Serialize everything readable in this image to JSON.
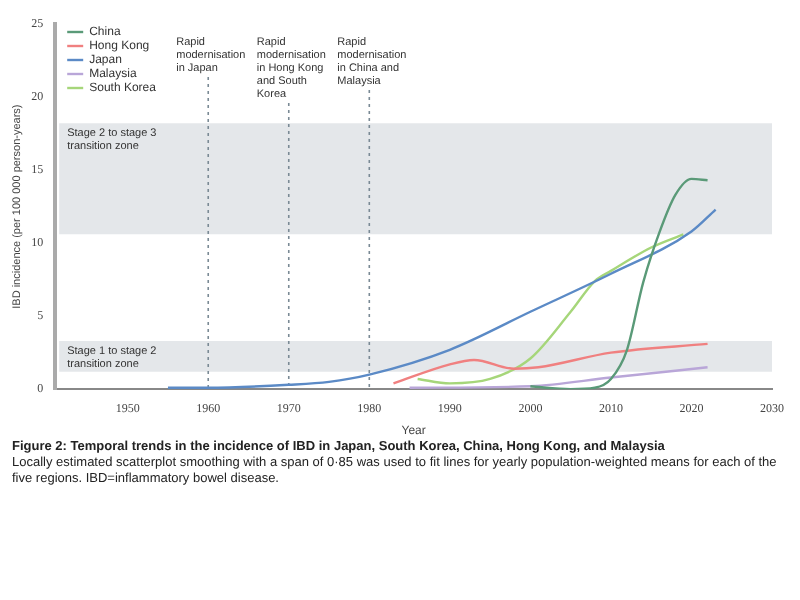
{
  "chart_data": {
    "type": "line",
    "title": "Figure 2: Temporal trends in the incidence of IBD in Japan, South Korea, China, Hong Kong, and Malaysia",
    "xlabel": "Year",
    "ylabel": "IBD incidence (per 100 000 person-years)",
    "annotations": [
      "Locally estimated scatterplot smoothing with a span of 0·85 was used to fit lines for yearly population-weighted means for each of the five regions. IBD=inflammatory bowel disease."
    ],
    "series": [
      {
        "name": "China",
        "color": "#5a9a78",
        "x": [
          2000,
          2005,
          2008,
          2010,
          2012,
          2014,
          2016,
          2018,
          2020,
          2022
        ],
        "values": [
          0.2,
          0.0,
          0.1,
          0.7,
          2.7,
          7.3,
          10.7,
          13.3,
          14.4,
          14.3
        ]
      },
      {
        "name": "Hong Kong",
        "color": "#f08080",
        "x": [
          1983,
          1990,
          1993,
          1998,
          2001,
          2010,
          2022
        ],
        "values": [
          0.4,
          1.7,
          2.0,
          1.4,
          1.5,
          2.5,
          3.1
        ]
      },
      {
        "name": "Japan",
        "color": "#5b8ac6",
        "x": [
          1955,
          1960,
          1970,
          1975,
          1980,
          1990,
          2000,
          2010,
          2020,
          2023
        ],
        "values": [
          0.1,
          0.1,
          0.3,
          0.5,
          1.0,
          2.7,
          5.3,
          7.9,
          10.8,
          12.3
        ]
      },
      {
        "name": "Malaysia",
        "color": "#b9a6d8",
        "x": [
          1985,
          2000,
          2010,
          2022
        ],
        "values": [
          0.1,
          0.2,
          0.8,
          1.5
        ]
      },
      {
        "name": "South Korea",
        "color": "#a6d67a",
        "x": [
          1986,
          1990,
          1995,
          2000,
          2005,
          2008,
          2010,
          2015,
          2019
        ],
        "values": [
          0.7,
          0.4,
          0.7,
          2.1,
          5.3,
          7.4,
          8.1,
          9.7,
          10.6
        ]
      }
    ],
    "xlim": [
      1941,
      2030
    ],
    "xticks": [
      1950,
      1960,
      1970,
      1980,
      1990,
      2000,
      2010,
      2020,
      2030
    ],
    "ylim": [
      0,
      25
    ],
    "yticks": [
      0,
      5,
      10,
      15,
      20,
      25
    ],
    "ref_lines": [
      {
        "axis": "x",
        "value": 1960,
        "label": "Rapid modernisation in Japan",
        "line_style": "dotted"
      },
      {
        "axis": "x",
        "value": 1970,
        "label": "Rapid modernisation in Hong Kong and South Korea",
        "line_style": "dotted"
      },
      {
        "axis": "x",
        "value": 1980,
        "label": "Rapid modernisation in China and Malaysia",
        "line_style": "dotted"
      }
    ],
    "bands": [
      {
        "axis": "y",
        "from": 1.2,
        "to": 3.3,
        "label": "Stage 1 to stage 2 transition zone",
        "color": "#e4e7ea"
      },
      {
        "axis": "y",
        "from": 10.6,
        "to": 18.2,
        "label": "Stage 2 to stage 3 transition zone",
        "color": "#e4e7ea"
      }
    ],
    "grid": false,
    "legend": "top left",
    "marker": "none",
    "line_style": "solid"
  }
}
